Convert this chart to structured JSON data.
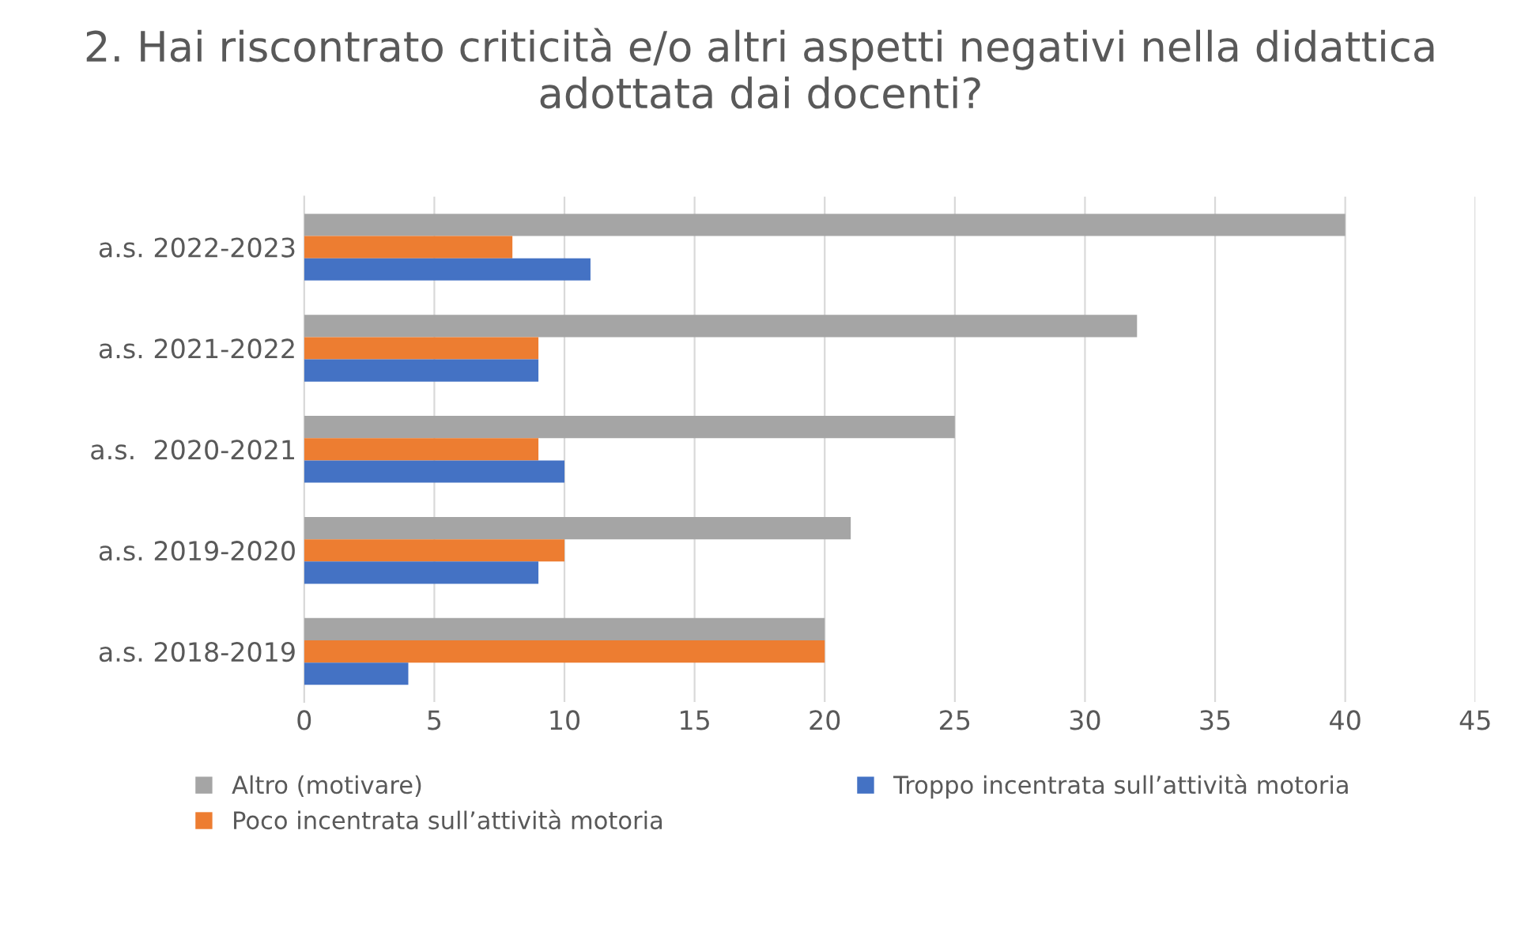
{
  "chart_data": {
    "type": "bar",
    "orientation": "horizontal",
    "title": "2. Hai riscontrato criticità e/o altri aspetti negativi nella didattica adottata dai docenti?",
    "categories": [
      "a.s. 2022-2023",
      "a.s. 2021-2022",
      "a.s.  2020-2021",
      "a.s. 2019-2020",
      "a.s. 2018-2019"
    ],
    "series": [
      {
        "name": "Altro (motivare)",
        "color": "#a5a5a5",
        "values": [
          40,
          32,
          25,
          21,
          20
        ]
      },
      {
        "name": "Poco incentrata sull’attività motoria",
        "color": "#ed7d31",
        "values": [
          8,
          9,
          9,
          10,
          20
        ]
      },
      {
        "name": "Troppo incentrata sull’attività motoria",
        "color": "#4472c4",
        "values": [
          11,
          9,
          10,
          9,
          4
        ]
      }
    ],
    "xlim": [
      0,
      45
    ],
    "xticks": [
      0,
      5,
      10,
      15,
      20,
      25,
      30,
      35,
      40,
      45
    ],
    "grid": "x",
    "legend": "bottom"
  }
}
